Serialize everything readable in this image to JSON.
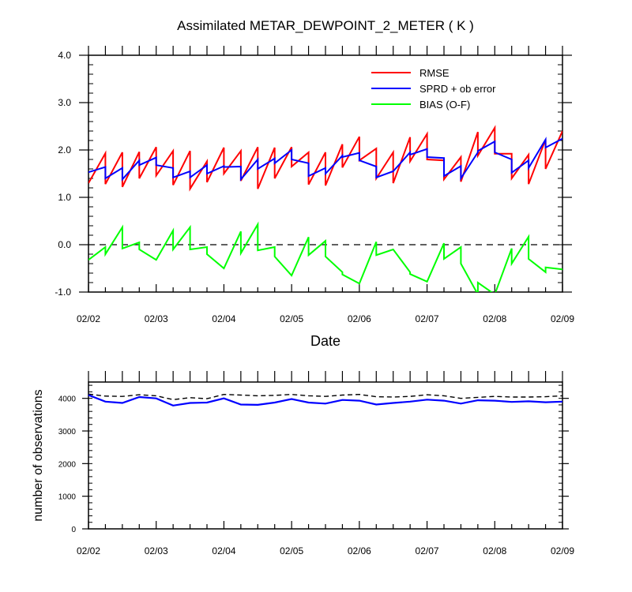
{
  "figure": {
    "title": "Assimilated METAR_DEWPOINT_2_METER ( K )",
    "xlabel": "Date",
    "ylabel_bottom": "number of observations"
  },
  "chart_data": [
    {
      "type": "line",
      "panel": "top",
      "title": "Assimilated METAR_DEWPOINT_2_METER ( K )",
      "xlabel": "Date",
      "ylabel": "",
      "xlim": [
        0,
        7
      ],
      "ylim": [
        -1.0,
        4.0
      ],
      "x_tick_labels": [
        "02/02",
        "02/03",
        "02/04",
        "02/05",
        "02/06",
        "02/07",
        "02/08",
        "02/09"
      ],
      "y_tick_labels": [
        "-1.0",
        "0.0",
        "1.0",
        "2.0",
        "3.0",
        "4.0"
      ],
      "legend_position": "top-right",
      "reference_line": {
        "y": 0.0,
        "style": "dashed",
        "color": "#000000"
      },
      "series": [
        {
          "name": "RMSE",
          "color": "#ff0000",
          "points": [
            [
              0,
              1.3
            ],
            [
              0.25,
              1.93
            ],
            [
              0.25,
              1.28
            ],
            [
              0.5,
              1.95
            ],
            [
              0.5,
              1.22
            ],
            [
              0.75,
              1.96
            ],
            [
              0.75,
              1.4
            ],
            [
              1.0,
              2.06
            ],
            [
              1.0,
              1.46
            ],
            [
              1.25,
              1.98
            ],
            [
              1.25,
              1.26
            ],
            [
              1.5,
              1.98
            ],
            [
              1.5,
              1.18
            ],
            [
              1.75,
              1.76
            ],
            [
              1.75,
              1.32
            ],
            [
              2.0,
              2.05
            ],
            [
              2.0,
              1.5
            ],
            [
              2.25,
              1.98
            ],
            [
              2.25,
              1.35
            ],
            [
              2.5,
              2.06
            ],
            [
              2.5,
              1.18
            ],
            [
              2.75,
              2.05
            ],
            [
              2.75,
              1.4
            ],
            [
              3.0,
              2.06
            ],
            [
              3.0,
              1.65
            ],
            [
              3.25,
              1.95
            ],
            [
              3.25,
              1.27
            ],
            [
              3.5,
              1.95
            ],
            [
              3.5,
              1.25
            ],
            [
              3.75,
              2.12
            ],
            [
              3.75,
              1.63
            ],
            [
              4.0,
              2.28
            ],
            [
              4.0,
              1.78
            ],
            [
              4.25,
              2.03
            ],
            [
              4.25,
              1.4
            ],
            [
              4.5,
              1.95
            ],
            [
              4.5,
              1.3
            ],
            [
              4.75,
              2.27
            ],
            [
              4.75,
              1.76
            ],
            [
              5.0,
              2.34
            ],
            [
              5.0,
              1.8
            ],
            [
              5.25,
              1.78
            ],
            [
              5.25,
              1.38
            ],
            [
              5.5,
              1.85
            ],
            [
              5.5,
              1.33
            ],
            [
              5.75,
              2.38
            ],
            [
              5.75,
              1.88
            ],
            [
              6.0,
              2.47
            ],
            [
              6.0,
              1.92
            ],
            [
              6.25,
              1.92
            ],
            [
              6.25,
              1.4
            ],
            [
              6.5,
              1.9
            ],
            [
              6.5,
              1.28
            ],
            [
              6.75,
              2.22
            ],
            [
              6.75,
              1.6
            ],
            [
              7.0,
              2.4
            ]
          ]
        },
        {
          "name": "SPRD + ob error",
          "color": "#0000ff",
          "points": [
            [
              0,
              1.53
            ],
            [
              0.25,
              1.64
            ],
            [
              0.25,
              1.4
            ],
            [
              0.5,
              1.62
            ],
            [
              0.5,
              1.38
            ],
            [
              0.75,
              1.78
            ],
            [
              0.75,
              1.68
            ],
            [
              1.0,
              1.84
            ],
            [
              1.0,
              1.68
            ],
            [
              1.25,
              1.62
            ],
            [
              1.25,
              1.42
            ],
            [
              1.5,
              1.55
            ],
            [
              1.5,
              1.42
            ],
            [
              1.75,
              1.68
            ],
            [
              1.75,
              1.5
            ],
            [
              2.0,
              1.66
            ],
            [
              2.0,
              1.64
            ],
            [
              2.25,
              1.65
            ],
            [
              2.25,
              1.38
            ],
            [
              2.5,
              1.8
            ],
            [
              2.5,
              1.6
            ],
            [
              2.75,
              1.82
            ],
            [
              2.75,
              1.72
            ],
            [
              3.0,
              2.0
            ],
            [
              3.0,
              1.8
            ],
            [
              3.25,
              1.72
            ],
            [
              3.25,
              1.45
            ],
            [
              3.5,
              1.62
            ],
            [
              3.5,
              1.5
            ],
            [
              3.75,
              1.88
            ],
            [
              3.75,
              1.85
            ],
            [
              4.0,
              1.94
            ],
            [
              4.0,
              1.78
            ],
            [
              4.25,
              1.65
            ],
            [
              4.25,
              1.42
            ],
            [
              4.5,
              1.55
            ],
            [
              4.5,
              1.55
            ],
            [
              4.75,
              1.95
            ],
            [
              4.75,
              1.9
            ],
            [
              5.0,
              2.02
            ],
            [
              5.0,
              1.85
            ],
            [
              5.25,
              1.83
            ],
            [
              5.25,
              1.45
            ],
            [
              5.5,
              1.66
            ],
            [
              5.5,
              1.4
            ],
            [
              5.75,
              1.95
            ],
            [
              5.75,
              1.98
            ],
            [
              6.0,
              2.18
            ],
            [
              6.0,
              1.95
            ],
            [
              6.25,
              1.8
            ],
            [
              6.25,
              1.52
            ],
            [
              6.5,
              1.78
            ],
            [
              6.5,
              1.62
            ],
            [
              6.75,
              2.22
            ],
            [
              6.75,
              2.05
            ],
            [
              7.0,
              2.24
            ]
          ]
        },
        {
          "name": "BIAS (O-F)",
          "color": "#00ff00",
          "points": [
            [
              0,
              -0.32
            ],
            [
              0.25,
              -0.05
            ],
            [
              0.25,
              -0.2
            ],
            [
              0.5,
              0.37
            ],
            [
              0.5,
              -0.08
            ],
            [
              0.75,
              0.05
            ],
            [
              0.75,
              -0.1
            ],
            [
              1.0,
              -0.32
            ],
            [
              1.0,
              -0.32
            ],
            [
              1.25,
              0.3
            ],
            [
              1.25,
              -0.1
            ],
            [
              1.5,
              0.37
            ],
            [
              1.5,
              -0.1
            ],
            [
              1.75,
              -0.05
            ],
            [
              1.75,
              -0.2
            ],
            [
              2.0,
              -0.5
            ],
            [
              2.0,
              -0.5
            ],
            [
              2.25,
              0.28
            ],
            [
              2.25,
              -0.18
            ],
            [
              2.5,
              0.43
            ],
            [
              2.5,
              -0.12
            ],
            [
              2.75,
              -0.05
            ],
            [
              2.75,
              -0.25
            ],
            [
              3.0,
              -0.65
            ],
            [
              3.0,
              -0.65
            ],
            [
              3.25,
              0.16
            ],
            [
              3.25,
              -0.22
            ],
            [
              3.5,
              0.08
            ],
            [
              3.5,
              -0.25
            ],
            [
              3.75,
              -0.58
            ],
            [
              3.75,
              -0.63
            ],
            [
              4.0,
              -0.82
            ],
            [
              4.0,
              -0.82
            ],
            [
              4.25,
              0.06
            ],
            [
              4.25,
              -0.22
            ],
            [
              4.5,
              -0.1
            ],
            [
              4.5,
              -0.1
            ],
            [
              4.75,
              -0.58
            ],
            [
              4.75,
              -0.62
            ],
            [
              5.0,
              -0.78
            ],
            [
              5.0,
              -0.78
            ],
            [
              5.25,
              0.03
            ],
            [
              5.25,
              -0.3
            ],
            [
              5.5,
              -0.05
            ],
            [
              5.5,
              -0.4
            ],
            [
              5.75,
              -1.05
            ],
            [
              5.75,
              -0.8
            ],
            [
              6.0,
              -1.05
            ],
            [
              6.0,
              -1.05
            ],
            [
              6.25,
              -0.08
            ],
            [
              6.25,
              -0.4
            ],
            [
              6.5,
              0.17
            ],
            [
              6.5,
              -0.3
            ],
            [
              6.75,
              -0.58
            ],
            [
              6.75,
              -0.48
            ],
            [
              7.0,
              -0.52
            ]
          ]
        }
      ]
    },
    {
      "type": "line",
      "panel": "bottom",
      "title": "",
      "xlabel": "",
      "ylabel": "number of observations",
      "xlim": [
        0,
        7
      ],
      "ylim": [
        0,
        4500
      ],
      "x_tick_labels": [
        "02/02",
        "02/03",
        "02/04",
        "02/05",
        "02/06",
        "02/07",
        "02/08",
        "02/09"
      ],
      "y_tick_labels": [
        "0",
        "1000",
        "2000",
        "3000",
        "4000"
      ],
      "series": [
        {
          "name": "",
          "color": "#000000",
          "dashed": true,
          "x": [
            0,
            0.25,
            0.5,
            0.75,
            1.0,
            1.25,
            1.5,
            1.75,
            2.0,
            2.25,
            2.5,
            2.75,
            3.0,
            3.25,
            3.5,
            3.75,
            4.0,
            4.25,
            4.5,
            4.75,
            5.0,
            5.25,
            5.5,
            5.75,
            6.0,
            6.25,
            6.5,
            6.75,
            7.0
          ],
          "values": [
            4130,
            4070,
            4060,
            4110,
            4080,
            3960,
            4020,
            3990,
            4120,
            4100,
            4080,
            4090,
            4120,
            4080,
            4060,
            4100,
            4120,
            4050,
            4040,
            4060,
            4110,
            4080,
            4000,
            4030,
            4060,
            4040,
            4040,
            4050,
            4080
          ]
        },
        {
          "name": "",
          "color": "#0000ff",
          "dashed": false,
          "x": [
            0,
            0.25,
            0.5,
            0.75,
            1.0,
            1.25,
            1.5,
            1.75,
            2.0,
            2.25,
            2.5,
            2.75,
            3.0,
            3.25,
            3.5,
            3.75,
            4.0,
            4.25,
            4.5,
            4.75,
            5.0,
            5.25,
            5.5,
            5.75,
            6.0,
            6.25,
            6.5,
            6.75,
            7.0
          ],
          "values": [
            4100,
            3900,
            3860,
            4040,
            4000,
            3780,
            3860,
            3870,
            4000,
            3810,
            3800,
            3870,
            3980,
            3870,
            3840,
            3950,
            3930,
            3810,
            3860,
            3900,
            3960,
            3930,
            3840,
            3940,
            3930,
            3890,
            3910,
            3880,
            3900
          ]
        }
      ]
    }
  ]
}
